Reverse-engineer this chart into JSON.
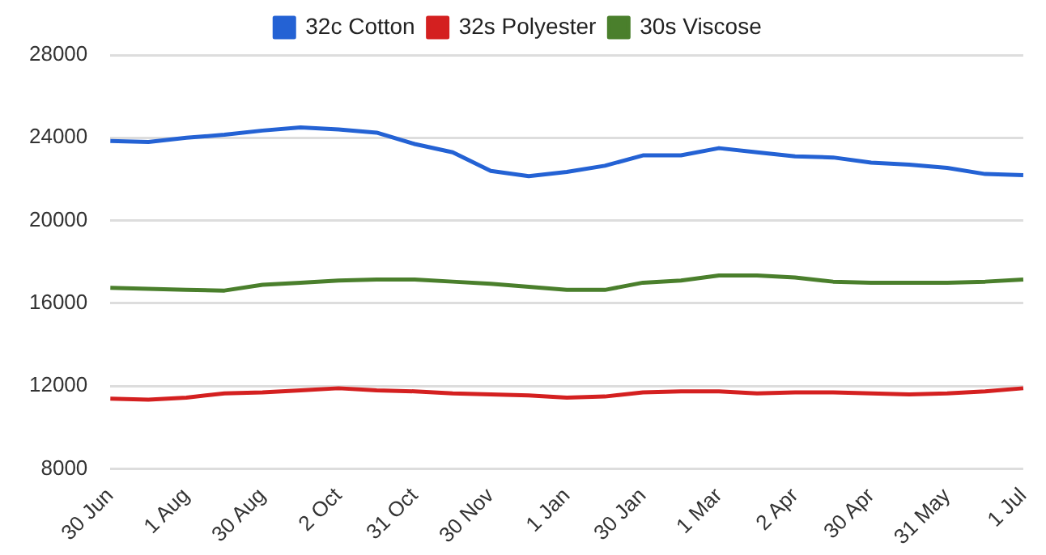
{
  "chart_data": {
    "type": "line",
    "categories": [
      "30 Jun",
      null,
      "1 Aug",
      null,
      "30 Aug",
      null,
      "2 Oct",
      null,
      "31 Oct",
      null,
      "30 Nov",
      null,
      "1 Jan",
      null,
      "30 Jan",
      null,
      "1 Mar",
      null,
      "2 Apr",
      null,
      "30 Apr",
      null,
      "31 May",
      null,
      "1 Jul"
    ],
    "series": [
      {
        "name": "32c Cotton",
        "color": "#2462d4",
        "values": [
          23850,
          23800,
          24000,
          24150,
          24350,
          24500,
          24400,
          24250,
          23700,
          23300,
          22400,
          22150,
          22350,
          22650,
          23150,
          23150,
          23500,
          23300,
          23100,
          23050,
          22800,
          22700,
          22550,
          22250,
          22200
        ]
      },
      {
        "name": "32s Polyester",
        "color": "#d42020",
        "values": [
          11400,
          11350,
          11450,
          11650,
          11700,
          11800,
          11900,
          11800,
          11750,
          11650,
          11600,
          11550,
          11450,
          11500,
          11700,
          11750,
          11750,
          11650,
          11700,
          11700,
          11650,
          11600,
          11650,
          11750,
          11900
        ]
      },
      {
        "name": "30s Viscose",
        "color": "#4a7f2c",
        "values": [
          16750,
          16700,
          16650,
          16620,
          16900,
          17000,
          17100,
          17150,
          17150,
          17050,
          16950,
          16800,
          16650,
          16650,
          17000,
          17100,
          17350,
          17350,
          17250,
          17050,
          17000,
          17000,
          17000,
          17050,
          17150
        ]
      }
    ],
    "ylim": [
      8000,
      28000
    ],
    "yticks": [
      8000,
      12000,
      16000,
      20000,
      24000,
      28000
    ],
    "grid": "y",
    "legend": "top",
    "marker": "none",
    "line_style": "solid"
  }
}
